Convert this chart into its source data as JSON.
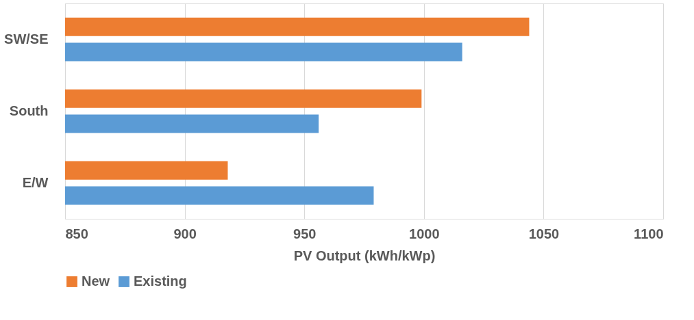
{
  "chart_data": {
    "type": "bar",
    "orientation": "horizontal",
    "categories": [
      "SW/SE",
      "South",
      "E/W"
    ],
    "xlabel": "PV Output (kWh/kWp)",
    "xlim": [
      850,
      1100
    ],
    "xticks": [
      850,
      900,
      950,
      1000,
      1050,
      1100
    ],
    "grid": "x",
    "legend": "bottom",
    "series": [
      {
        "name": "New",
        "color": "#ed7d31",
        "values": [
          1044,
          999,
          918
        ]
      },
      {
        "name": "Existing",
        "color": "#5b9bd5",
        "values": [
          1016,
          956,
          979
        ]
      }
    ]
  }
}
